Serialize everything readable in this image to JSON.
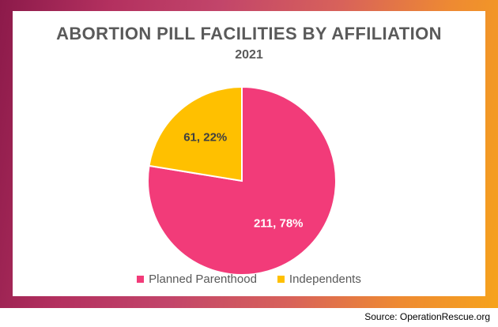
{
  "chart_data": {
    "type": "pie",
    "title": "ABORTION PILL FACILITIES BY AFFILIATION",
    "subtitle": "2021",
    "slices": [
      {
        "name": "Planned Parenthood",
        "value": 211,
        "percent": 78,
        "label": "211, 78%",
        "color": "#f23b79",
        "label_color": "#ffffff"
      },
      {
        "name": "Independents",
        "value": 61,
        "percent": 22,
        "label": "61, 22%",
        "color": "#ffc000",
        "label_color": "#404040"
      }
    ],
    "legend_position": "bottom"
  },
  "source": "Source: OperationRescue.org",
  "colors": {
    "frame_start": "#8c1a4a",
    "frame_end": "#f6a31c",
    "title_text": "#5a5a5a"
  }
}
